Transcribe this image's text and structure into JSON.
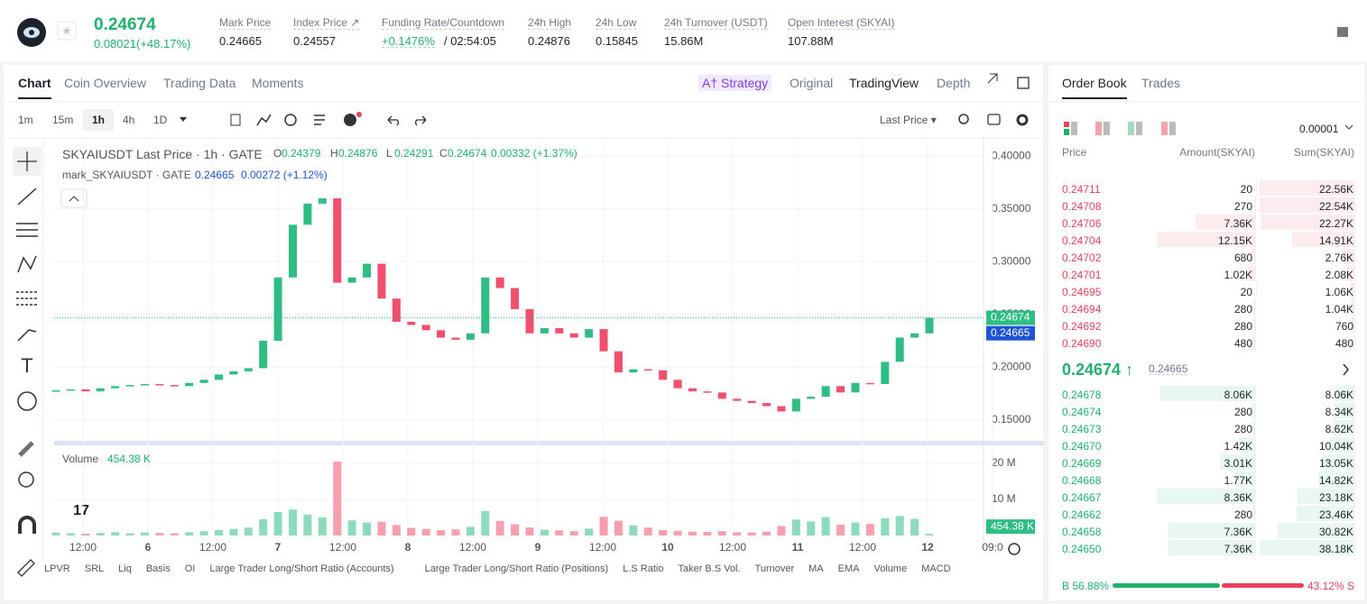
{
  "header": {
    "price": "0.24674",
    "change": "0.08021(+48.17%)",
    "stats": [
      {
        "label": "Mark Price",
        "value": "0.24665"
      },
      {
        "label": "Index Price ↗",
        "value": "0.24557"
      },
      {
        "label": "Funding Rate/Countdown",
        "value": "+0.1476%",
        "extra": "/ 02:54:05"
      },
      {
        "label": "24h High",
        "value": "0.24876"
      },
      {
        "label": "24h Low",
        "value": "0.15845"
      },
      {
        "label": "24h Turnover (USDT)",
        "value": "15.86M"
      },
      {
        "label": "Open Interest (SKYAI)",
        "value": "107.88M"
      }
    ]
  },
  "tabs": [
    "Chart",
    "Coin Overview",
    "Trading Data",
    "Moments"
  ],
  "view_tabs": [
    "A† Strategy",
    "Original",
    "TradingView",
    "Depth"
  ],
  "intervals": [
    "1m",
    "15m",
    "1h",
    "4h",
    "1D"
  ],
  "price_type": "Last Price ▾",
  "legend": {
    "symbol": "SKYAIUSDT Last Price · 1h · GATE",
    "ohlc": [
      {
        "key": "O",
        "value": "0.24379"
      },
      {
        "key": "H",
        "value": "0.24876"
      },
      {
        "key": "L",
        "value": "0.24291"
      },
      {
        "key": "C",
        "value": "0.24674"
      }
    ],
    "change": "0.00332 (+1.37%)"
  },
  "mark_legend": {
    "name": "mark_SKYAIUSDT · GATE",
    "value": "0.24665",
    "change": "0.00272 (+1.12%)"
  },
  "volume_legend": {
    "label": "Volume",
    "value": "454.38 K"
  },
  "chart_data": {
    "type": "candlestick",
    "close": [
      0.178,
      0.179,
      0.177,
      0.18,
      0.182,
      0.183,
      0.184,
      0.183,
      0.182,
      0.185,
      0.188,
      0.193,
      0.196,
      0.199,
      0.225,
      0.285,
      0.335,
      0.355,
      0.36,
      0.28,
      0.285,
      0.298,
      0.265,
      0.243,
      0.24,
      0.235,
      0.228,
      0.226,
      0.232,
      0.285,
      0.275,
      0.255,
      0.232,
      0.237,
      0.232,
      0.228,
      0.236,
      0.215,
      0.195,
      0.198,
      0.197,
      0.188,
      0.18,
      0.177,
      0.176,
      0.17,
      0.168,
      0.166,
      0.163,
      0.158,
      0.17,
      0.172,
      0.182,
      0.176,
      0.185,
      0.184,
      0.205,
      0.228,
      0.232,
      0.24674
    ],
    "volume": [
      0.8,
      0.6,
      0.5,
      0.7,
      0.9,
      0.6,
      0.8,
      0.7,
      0.6,
      0.9,
      1.2,
      1.5,
      1.8,
      2.2,
      4.5,
      6.5,
      7.2,
      5.8,
      5.0,
      20.5,
      4.2,
      3.6,
      3.8,
      2.9,
      2.1,
      1.8,
      1.5,
      1.7,
      2.4,
      6.8,
      4.0,
      3.1,
      2.2,
      1.6,
      1.4,
      1.2,
      1.9,
      5.2,
      4.1,
      2.8,
      2.2,
      1.5,
      1.3,
      1.1,
      1.0,
      1.2,
      0.9,
      0.8,
      1.1,
      2.6,
      4.4,
      3.9,
      5.1,
      3.0,
      3.6,
      3.2,
      4.8,
      5.4,
      4.6,
      0.45438
    ],
    "ylim": [
      0.131,
      0.413
    ],
    "yticks": [
      {
        "value": 0.15,
        "label": "0.15000"
      },
      {
        "value": 0.2,
        "label": "0.20000"
      },
      {
        "value": 0.25,
        "label": "0.25000"
      },
      {
        "value": 0.3,
        "label": "0.30000"
      },
      {
        "value": 0.35,
        "label": "0.35000"
      },
      {
        "value": 0.4,
        "label": "0.40000"
      }
    ],
    "volume_ylim": [
      0,
      23.5
    ],
    "volume_yticks": [
      {
        "value": 10,
        "label": "10 M"
      },
      {
        "value": 20,
        "label": "20 M"
      }
    ],
    "last_price": 0.24674,
    "mark_price": 0.24665,
    "volume_last": {
      "value": 0.45438,
      "label": "454.38 K"
    },
    "xtick_labels": [
      "12:00",
      "6",
      "12:00",
      "7",
      "12:00",
      "8",
      "12:00",
      "9",
      "12:00",
      "10",
      "12:00",
      "11",
      "12:00",
      "12",
      "09:0"
    ],
    "up_color": "#2ebd85",
    "down_color": "#f0506e",
    "grid": true
  },
  "indicators": [
    "LPVR",
    "SRL",
    "Liq",
    "Basis",
    "OI",
    "Large Trader Long/Short Ratio (Accounts)",
    "Large Trader Long/Short Ratio (Positions)",
    "L.S Ratio",
    "Taker B.S Vol.",
    "Turnover",
    "MA",
    "EMA",
    "Volume",
    "MACD"
  ],
  "order_book": {
    "tabs": [
      "Order Book",
      "Trades"
    ],
    "precision": "0.00001",
    "columns": [
      "Price",
      "Amount(SKYAI)",
      "Sum(SKYAI)"
    ],
    "asks": [
      [
        "0.24711",
        "20",
        "22.56K"
      ],
      [
        "0.24708",
        "270",
        "22.54K"
      ],
      [
        "0.24706",
        "7.36K",
        "22.27K"
      ],
      [
        "0.24704",
        "12.15K",
        "14.91K"
      ],
      [
        "0.24702",
        "680",
        "2.76K"
      ],
      [
        "0.24701",
        "1.02K",
        "2.08K"
      ],
      [
        "0.24695",
        "20",
        "1.06K"
      ],
      [
        "0.24694",
        "280",
        "1.04K"
      ],
      [
        "0.24692",
        "280",
        "760"
      ],
      [
        "0.24690",
        "480",
        "480"
      ]
    ],
    "mid": {
      "price": "0.24674 ↑",
      "mark": "0.24665"
    },
    "bids": [
      [
        "0.24678",
        "8.06K",
        "8.06K"
      ],
      [
        "0.24674",
        "280",
        "8.34K"
      ],
      [
        "0.24673",
        "280",
        "8.62K"
      ],
      [
        "0.24670",
        "1.42K",
        "10.04K"
      ],
      [
        "0.24669",
        "3.01K",
        "13.05K"
      ],
      [
        "0.24668",
        "1.77K",
        "14.82K"
      ],
      [
        "0.24667",
        "8.36K",
        "23.18K"
      ],
      [
        "0.24662",
        "280",
        "23.46K"
      ],
      [
        "0.24658",
        "7.36K",
        "30.82K"
      ],
      [
        "0.24650",
        "7.36K",
        "38.18K"
      ]
    ],
    "buy": "B 56.88%",
    "sell": "43.12% S"
  }
}
